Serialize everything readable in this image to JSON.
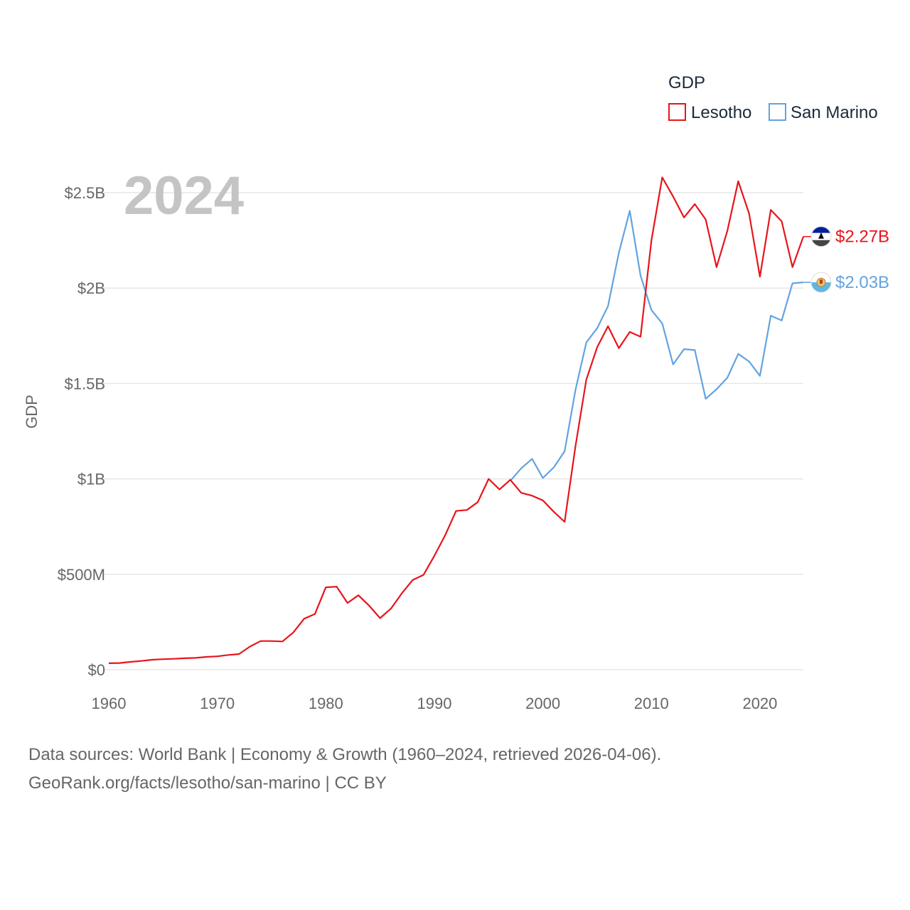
{
  "chart_data": {
    "type": "line",
    "year_label": "2024",
    "ylabel": "GDP",
    "legend_title": "GDP",
    "xlim": [
      1960,
      2024
    ],
    "ylim": [
      0,
      2500000000
    ],
    "x_ticks": [
      1960,
      1970,
      1980,
      1990,
      2000,
      2010,
      2020
    ],
    "x_tick_labels": [
      "1960",
      "1970",
      "1980",
      "1990",
      "2000",
      "2010",
      "2020"
    ],
    "y_ticks": [
      0,
      500000000,
      1000000000,
      1500000000,
      2000000000,
      2500000000
    ],
    "y_tick_labels": [
      "$0",
      "$500M",
      "$1B",
      "$1.5B",
      "$2B",
      "$2.5B"
    ],
    "series": [
      {
        "name": "Lesotho",
        "color": "#e8141b",
        "end_label": "$2.27B",
        "flag": "lesotho-flag-icon",
        "x": [
          1960,
          1961,
          1962,
          1963,
          1964,
          1965,
          1966,
          1967,
          1968,
          1969,
          1970,
          1971,
          1972,
          1973,
          1974,
          1975,
          1976,
          1977,
          1978,
          1979,
          1980,
          1981,
          1982,
          1983,
          1984,
          1985,
          1986,
          1987,
          1988,
          1989,
          1990,
          1991,
          1992,
          1993,
          1994,
          1995,
          1996,
          1997,
          1998,
          1999,
          2000,
          2001,
          2002,
          2003,
          2004,
          2005,
          2006,
          2007,
          2008,
          2009,
          2010,
          2011,
          2012,
          2013,
          2014,
          2015,
          2016,
          2017,
          2018,
          2019,
          2020,
          2021,
          2022,
          2023,
          2024
        ],
        "values": [
          34000000,
          35000000,
          41000000,
          46000000,
          52000000,
          55000000,
          57000000,
          60000000,
          62000000,
          67000000,
          70000000,
          77000000,
          82000000,
          121000000,
          150000000,
          150000000,
          148000000,
          195000000,
          267000000,
          292000000,
          432000000,
          435000000,
          350000000,
          390000000,
          335000000,
          270000000,
          320000000,
          400000000,
          470000000,
          497000000,
          597000000,
          705000000,
          832000000,
          837000000,
          878000000,
          1000000000,
          945000000,
          995000000,
          927000000,
          912000000,
          887000000,
          828000000,
          775000000,
          1170000000,
          1520000000,
          1690000000,
          1800000000,
          1685000000,
          1770000000,
          1745000000,
          2250000000,
          2580000000,
          2480000000,
          2370000000,
          2440000000,
          2360000000,
          2110000000,
          2300000000,
          2560000000,
          2390000000,
          2060000000,
          2410000000,
          2350000000,
          2110000000,
          2270000000
        ]
      },
      {
        "name": "San Marino",
        "color": "#62a3e0",
        "end_label": "$2.03B",
        "flag": "san-marino-flag-icon",
        "x": [
          1997,
          1998,
          1999,
          2000,
          2001,
          2002,
          2003,
          2004,
          2005,
          2006,
          2007,
          2008,
          2009,
          2010,
          2011,
          2012,
          2013,
          2014,
          2015,
          2016,
          2017,
          2018,
          2019,
          2020,
          2021,
          2022,
          2023,
          2024
        ],
        "values": [
          990000000,
          1055000000,
          1105000000,
          1005000000,
          1060000000,
          1145000000,
          1465000000,
          1715000000,
          1790000000,
          1905000000,
          2185000000,
          2405000000,
          2065000000,
          1885000000,
          1815000000,
          1600000000,
          1680000000,
          1675000000,
          1420000000,
          1470000000,
          1530000000,
          1655000000,
          1615000000,
          1540000000,
          1855000000,
          1830000000,
          2025000000,
          2030000000
        ]
      }
    ]
  },
  "source": {
    "line1": "Data sources: World Bank | Economy & Growth (1960–2024, retrieved 2026-04-06).",
    "line2": "GeoRank.org/facts/lesotho/san-marino | CC BY"
  }
}
